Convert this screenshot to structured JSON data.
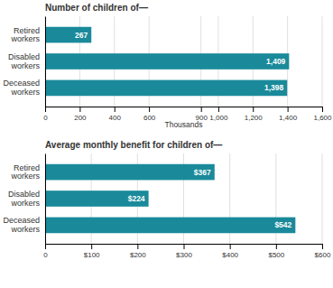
{
  "chart_data": [
    {
      "type": "bar",
      "orientation": "horizontal",
      "title": "Number of children of—",
      "categories": [
        "Retired\nworkers",
        "Disabled\nworkers",
        "Deceased\nworkers"
      ],
      "values": [
        267,
        1409,
        1398
      ],
      "value_labels": [
        "267",
        "1,409",
        "1,398"
      ],
      "data_labels": true,
      "color": "#1a8a9b",
      "xlim": [
        0,
        1600
      ],
      "xticks": [
        0,
        200,
        400,
        600,
        900,
        {
          "value": 1000,
          "label": "1,000"
        },
        {
          "value": 1200,
          "label": "1,200"
        },
        {
          "value": 1400,
          "label": "1,400"
        },
        {
          "value": 1600,
          "label": "1,600"
        }
      ],
      "xlabel": "Thousands",
      "grid": true
    },
    {
      "type": "bar",
      "orientation": "horizontal",
      "title": "Average monthly benefit for children of—",
      "categories": [
        "Retired\nworkers",
        "Disabled\nworkers",
        "Deceased\nworkers"
      ],
      "values": [
        367,
        224,
        542
      ],
      "value_labels": [
        "$367",
        "$224",
        "$542"
      ],
      "data_labels": true,
      "color": "#1a8a9b",
      "xlim": [
        0,
        600
      ],
      "xticks": [
        0,
        {
          "value": 100,
          "label": "$100"
        },
        {
          "value": 200,
          "label": "$200"
        },
        {
          "value": 300,
          "label": "$300"
        },
        {
          "value": 400,
          "label": "$400"
        },
        {
          "value": 500,
          "label": "$500"
        },
        {
          "value": 600,
          "label": "$600"
        }
      ],
      "grid": true
    }
  ]
}
